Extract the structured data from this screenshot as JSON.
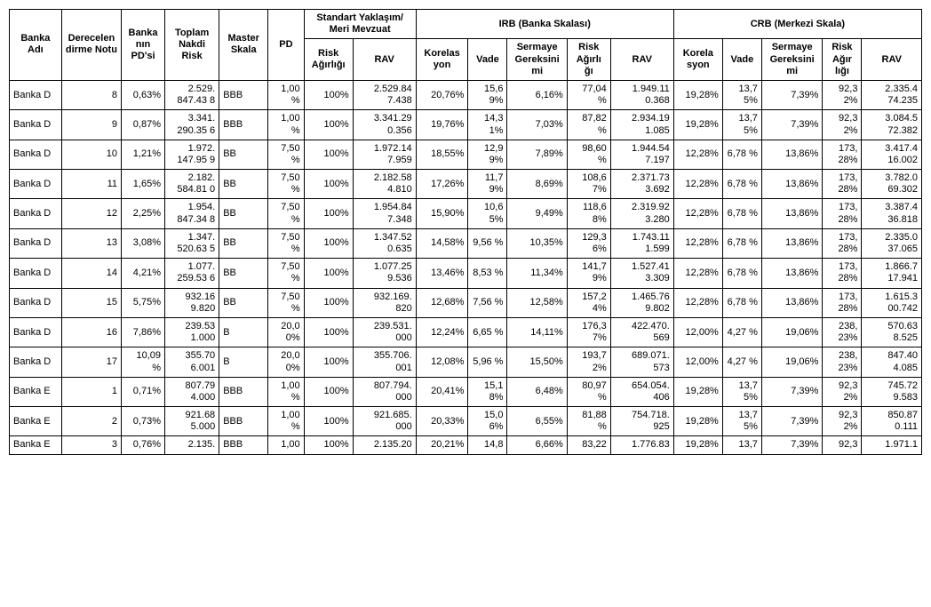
{
  "headers": {
    "group_row": {
      "banka_adi": "Banka Adı",
      "derecelendirme": "Derecelen dirme Notu",
      "pdsi": "Banka nın PD'si",
      "toplam": "Toplam Nakdi Risk",
      "master": "Master Skala",
      "pd": "PD",
      "standart": "Standart Yaklaşım/ Meri Mevzuat",
      "irb": "IRB (Banka Skalası)",
      "crb": "CRB (Merkezi Skala)"
    },
    "sub_row": {
      "risk_agirligi": "Risk Ağırlığı",
      "rav": "RAV",
      "korelasyon": "Korelas yon",
      "vade": "Vade",
      "sermaye": "Sermaye Gereksini mi",
      "risk_agirligi2": "Risk Ağırlı ğı",
      "rav2": "RAV",
      "korela": "Korela syon",
      "vade2": "Vade",
      "sermaye2": "Sermaye Gereksini mi",
      "risk_agir": "Risk Ağır lığı",
      "rav3": "RAV"
    }
  },
  "rows": [
    {
      "banka": "Banka D",
      "derece": "8",
      "pdsi": "0,63%",
      "toplam": "2.529. 847.43 8",
      "master": "BBB",
      "pd": "1,00 %",
      "riska": "100%",
      "rav": "2.529.84 7.438",
      "kor": "20,76%",
      "vade": "15,6 9%",
      "ser": "6,16%",
      "ra": "77,04 %",
      "rav2": "1.949.11 0.368",
      "kor2": "19,28%",
      "vade2": "13,7 5%",
      "ser2": "7,39%",
      "ra2": "92,3 2%",
      "rav3": "2.335.4 74.235"
    },
    {
      "banka": "Banka D",
      "derece": "9",
      "pdsi": "0,87%",
      "toplam": "3.341. 290.35 6",
      "master": "BBB",
      "pd": "1,00 %",
      "riska": "100%",
      "rav": "3.341.29 0.356",
      "kor": "19,76%",
      "vade": "14,3 1%",
      "ser": "7,03%",
      "ra": "87,82 %",
      "rav2": "2.934.19 1.085",
      "kor2": "19,28%",
      "vade2": "13,7 5%",
      "ser2": "7,39%",
      "ra2": "92,3 2%",
      "rav3": "3.084.5 72.382"
    },
    {
      "banka": "Banka D",
      "derece": "10",
      "pdsi": "1,21%",
      "toplam": "1.972. 147.95 9",
      "master": "BB",
      "pd": "7,50 %",
      "riska": "100%",
      "rav": "1.972.14 7.959",
      "kor": "18,55%",
      "vade": "12,9 9%",
      "ser": "7,89%",
      "ra": "98,60 %",
      "rav2": "1.944.54 7.197",
      "kor2": "12,28%",
      "vade2": "6,78 %",
      "ser2": "13,86%",
      "ra2": "173, 28%",
      "rav3": "3.417.4 16.002"
    },
    {
      "banka": "Banka D",
      "derece": "11",
      "pdsi": "1,65%",
      "toplam": "2.182. 584.81 0",
      "master": "BB",
      "pd": "7,50 %",
      "riska": "100%",
      "rav": "2.182.58 4.810",
      "kor": "17,26%",
      "vade": "11,7 9%",
      "ser": "8,69%",
      "ra": "108,6 7%",
      "rav2": "2.371.73 3.692",
      "kor2": "12,28%",
      "vade2": "6,78 %",
      "ser2": "13,86%",
      "ra2": "173, 28%",
      "rav3": "3.782.0 69.302"
    },
    {
      "banka": "Banka D",
      "derece": "12",
      "pdsi": "2,25%",
      "toplam": "1.954. 847.34 8",
      "master": "BB",
      "pd": "7,50 %",
      "riska": "100%",
      "rav": "1.954.84 7.348",
      "kor": "15,90%",
      "vade": "10,6 5%",
      "ser": "9,49%",
      "ra": "118,6 8%",
      "rav2": "2.319.92 3.280",
      "kor2": "12,28%",
      "vade2": "6,78 %",
      "ser2": "13,86%",
      "ra2": "173, 28%",
      "rav3": "3.387.4 36.818"
    },
    {
      "banka": "Banka D",
      "derece": "13",
      "pdsi": "3,08%",
      "toplam": "1.347. 520.63 5",
      "master": "BB",
      "pd": "7,50 %",
      "riska": "100%",
      "rav": "1.347.52 0.635",
      "kor": "14,58%",
      "vade": "9,56 %",
      "ser": "10,35%",
      "ra": "129,3 6%",
      "rav2": "1.743.11 1.599",
      "kor2": "12,28%",
      "vade2": "6,78 %",
      "ser2": "13,86%",
      "ra2": "173, 28%",
      "rav3": "2.335.0 37.065"
    },
    {
      "banka": "Banka D",
      "derece": "14",
      "pdsi": "4,21%",
      "toplam": "1.077. 259.53 6",
      "master": "BB",
      "pd": "7,50 %",
      "riska": "100%",
      "rav": "1.077.25 9.536",
      "kor": "13,46%",
      "vade": "8,53 %",
      "ser": "11,34%",
      "ra": "141,7 9%",
      "rav2": "1.527.41 3.309",
      "kor2": "12,28%",
      "vade2": "6,78 %",
      "ser2": "13,86%",
      "ra2": "173, 28%",
      "rav3": "1.866.7 17.941"
    },
    {
      "banka": "Banka D",
      "derece": "15",
      "pdsi": "5,75%",
      "toplam": "932.16 9.820",
      "master": "BB",
      "pd": "7,50 %",
      "riska": "100%",
      "rav": "932.169. 820",
      "kor": "12,68%",
      "vade": "7,56 %",
      "ser": "12,58%",
      "ra": "157,2 4%",
      "rav2": "1.465.76 9.802",
      "kor2": "12,28%",
      "vade2": "6,78 %",
      "ser2": "13,86%",
      "ra2": "173, 28%",
      "rav3": "1.615.3 00.742"
    },
    {
      "banka": "Banka D",
      "derece": "16",
      "pdsi": "7,86%",
      "toplam": "239.53 1.000",
      "master": "B",
      "pd": "20,0 0%",
      "riska": "100%",
      "rav": "239.531. 000",
      "kor": "12,24%",
      "vade": "6,65 %",
      "ser": "14,11%",
      "ra": "176,3 7%",
      "rav2": "422.470. 569",
      "kor2": "12,00%",
      "vade2": "4,27 %",
      "ser2": "19,06%",
      "ra2": "238, 23%",
      "rav3": "570.63 8.525"
    },
    {
      "banka": "Banka D",
      "derece": "17",
      "pdsi": "10,09 %",
      "toplam": "355.70 6.001",
      "master": "B",
      "pd": "20,0 0%",
      "riska": "100%",
      "rav": "355.706. 001",
      "kor": "12,08%",
      "vade": "5,96 %",
      "ser": "15,50%",
      "ra": "193,7 2%",
      "rav2": "689.071. 573",
      "kor2": "12,00%",
      "vade2": "4,27 %",
      "ser2": "19,06%",
      "ra2": "238, 23%",
      "rav3": "847.40 4.085"
    },
    {
      "banka": "Banka E",
      "derece": "1",
      "pdsi": "0,71%",
      "toplam": "807.79 4.000",
      "master": "BBB",
      "pd": "1,00 %",
      "riska": "100%",
      "rav": "807.794. 000",
      "kor": "20,41%",
      "vade": "15,1 8%",
      "ser": "6,48%",
      "ra": "80,97 %",
      "rav2": "654.054. 406",
      "kor2": "19,28%",
      "vade2": "13,7 5%",
      "ser2": "7,39%",
      "ra2": "92,3 2%",
      "rav3": "745.72 9.583"
    },
    {
      "banka": "Banka E",
      "derece": "2",
      "pdsi": "0,73%",
      "toplam": "921.68 5.000",
      "master": "BBB",
      "pd": "1,00 %",
      "riska": "100%",
      "rav": "921.685. 000",
      "kor": "20,33%",
      "vade": "15,0 6%",
      "ser": "6,55%",
      "ra": "81,88 %",
      "rav2": "754.718. 925",
      "kor2": "19,28%",
      "vade2": "13,7 5%",
      "ser2": "7,39%",
      "ra2": "92,3 2%",
      "rav3": "850.87 0.111"
    },
    {
      "banka": "Banka E",
      "derece": "3",
      "pdsi": "0,76%",
      "toplam": "2.135.",
      "master": "BBB",
      "pd": "1,00",
      "riska": "100%",
      "rav": "2.135.20",
      "kor": "20,21%",
      "vade": "14,8",
      "ser": "6,66%",
      "ra": "83,22",
      "rav2": "1.776.83",
      "kor2": "19,28%",
      "vade2": "13,7",
      "ser2": "7,39%",
      "ra2": "92,3",
      "rav3": "1.971.1"
    }
  ]
}
